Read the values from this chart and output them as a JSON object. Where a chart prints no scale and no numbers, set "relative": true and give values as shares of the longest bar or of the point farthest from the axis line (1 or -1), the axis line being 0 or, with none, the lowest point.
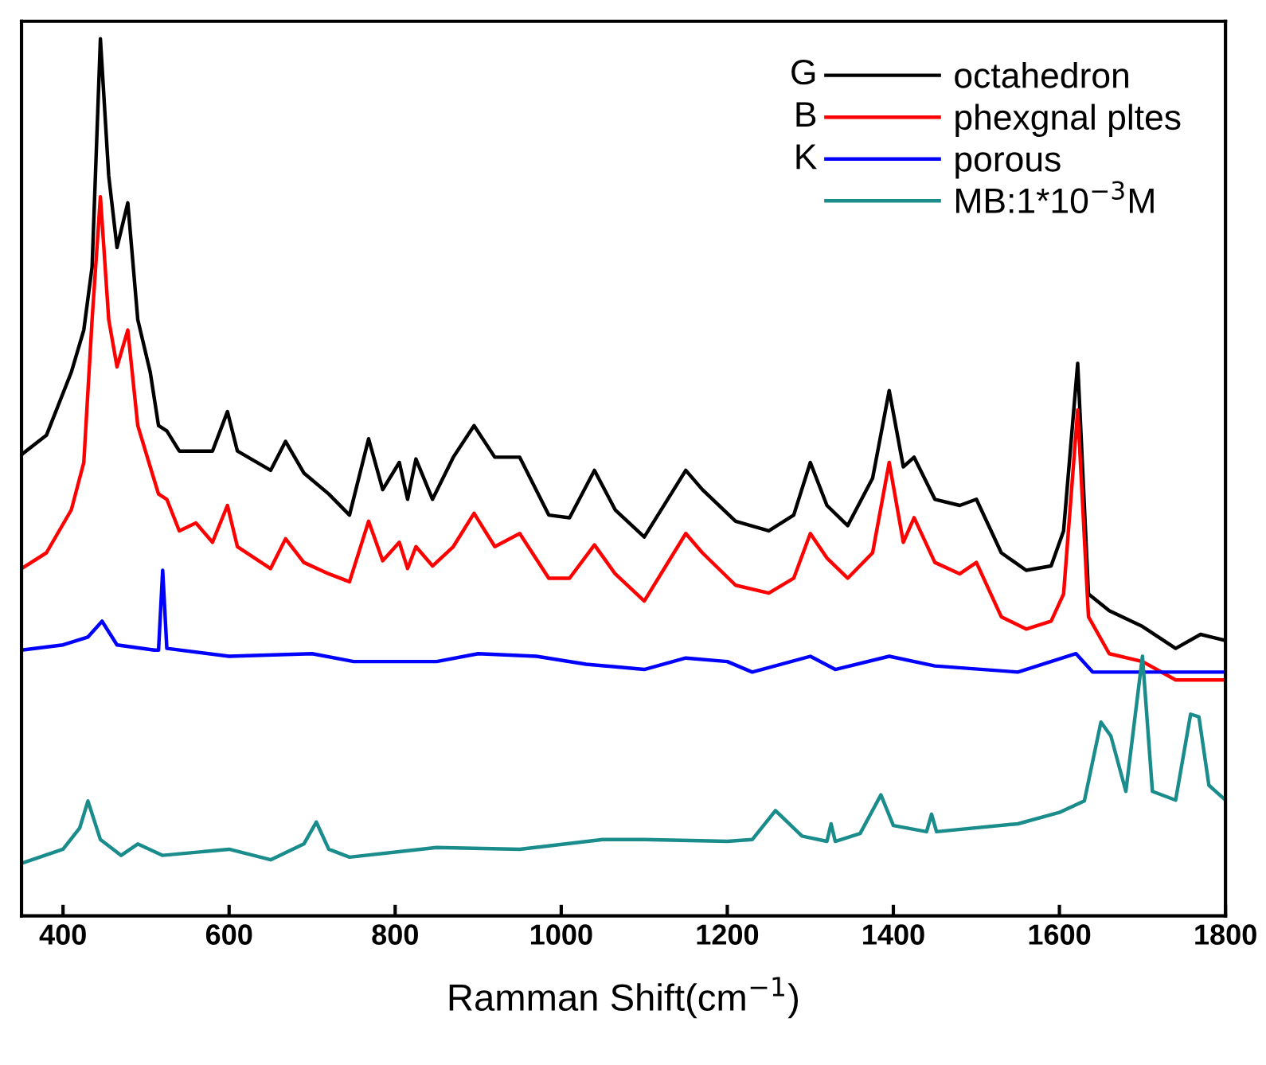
{
  "chart_data": {
    "type": "line",
    "relative": true,
    "xlabel": "Ramman Shift(cm$^{−1}$)",
    "xlim": [
      350,
      1800
    ],
    "xticks": [
      400,
      600,
      800,
      1000,
      1200,
      1400,
      1600,
      1800
    ],
    "tick_labels": "x",
    "legend": "top right",
    "grid": false,
    "annotations": [
      "G",
      "B",
      "K"
    ],
    "series": [
      {
        "name": "octahedron",
        "color": "#000000",
        "x": [
          350,
          380,
          410,
          425,
          435,
          445,
          455,
          465,
          478,
          490,
          505,
          515,
          525,
          540,
          580,
          598,
          610,
          650,
          668,
          690,
          720,
          745,
          768,
          785,
          805,
          815,
          825,
          845,
          870,
          895,
          920,
          950,
          985,
          1010,
          1040,
          1065,
          1100,
          1150,
          1170,
          1210,
          1250,
          1280,
          1300,
          1320,
          1345,
          1375,
          1395,
          1412,
          1425,
          1450,
          1480,
          1500,
          1530,
          1560,
          1590,
          1605,
          1622,
          1635,
          1660,
          1700,
          1740,
          1770,
          1800
        ],
        "values": [
          0.526,
          0.548,
          0.62,
          0.668,
          0.74,
          1.0,
          0.844,
          0.762,
          0.813,
          0.68,
          0.62,
          0.559,
          0.553,
          0.53,
          0.53,
          0.575,
          0.53,
          0.508,
          0.541,
          0.505,
          0.481,
          0.457,
          0.544,
          0.486,
          0.517,
          0.475,
          0.521,
          0.475,
          0.523,
          0.559,
          0.523,
          0.523,
          0.457,
          0.454,
          0.508,
          0.463,
          0.432,
          0.508,
          0.486,
          0.45,
          0.439,
          0.457,
          0.517,
          0.468,
          0.445,
          0.499,
          0.599,
          0.512,
          0.523,
          0.475,
          0.468,
          0.475,
          0.414,
          0.394,
          0.399,
          0.439,
          0.63,
          0.367,
          0.348,
          0.33,
          0.305,
          0.321,
          0.314
        ]
      },
      {
        "name": "phexgnal pltes",
        "color": "#ff0000",
        "x": [
          350,
          380,
          410,
          425,
          435,
          445,
          455,
          465,
          478,
          490,
          505,
          515,
          525,
          540,
          560,
          580,
          598,
          610,
          650,
          668,
          690,
          720,
          745,
          768,
          785,
          805,
          815,
          825,
          845,
          870,
          895,
          920,
          950,
          985,
          1010,
          1040,
          1065,
          1100,
          1150,
          1170,
          1210,
          1250,
          1280,
          1300,
          1320,
          1345,
          1375,
          1395,
          1412,
          1425,
          1450,
          1480,
          1500,
          1530,
          1560,
          1590,
          1605,
          1622,
          1635,
          1660,
          1700,
          1740,
          1800
        ],
        "values": [
          0.396,
          0.414,
          0.463,
          0.517,
          0.68,
          0.82,
          0.68,
          0.626,
          0.668,
          0.559,
          0.512,
          0.481,
          0.475,
          0.439,
          0.448,
          0.426,
          0.468,
          0.421,
          0.396,
          0.43,
          0.403,
          0.39,
          0.381,
          0.45,
          0.405,
          0.426,
          0.396,
          0.421,
          0.399,
          0.421,
          0.459,
          0.421,
          0.436,
          0.385,
          0.385,
          0.423,
          0.39,
          0.359,
          0.436,
          0.414,
          0.377,
          0.368,
          0.385,
          0.436,
          0.408,
          0.385,
          0.414,
          0.517,
          0.426,
          0.454,
          0.403,
          0.39,
          0.403,
          0.341,
          0.327,
          0.336,
          0.367,
          0.577,
          0.341,
          0.299,
          0.29,
          0.269,
          0.269
        ]
      },
      {
        "name": "porous",
        "color": "#0000ff",
        "x": [
          350,
          400,
          430,
          447,
          465,
          510,
          515,
          520,
          525,
          600,
          700,
          750,
          850,
          900,
          970,
          1030,
          1100,
          1150,
          1200,
          1230,
          1300,
          1330,
          1395,
          1450,
          1550,
          1620,
          1640,
          1700,
          1800
        ],
        "values": [
          0.303,
          0.309,
          0.318,
          0.336,
          0.309,
          0.303,
          0.303,
          0.394,
          0.305,
          0.296,
          0.299,
          0.29,
          0.29,
          0.299,
          0.296,
          0.287,
          0.281,
          0.294,
          0.29,
          0.278,
          0.296,
          0.281,
          0.296,
          0.285,
          0.278,
          0.299,
          0.278,
          0.278,
          0.278
        ]
      },
      {
        "name": "MB:1*10$^{−3}$M",
        "color": "#1a8c8c",
        "x": [
          350,
          400,
          420,
          430,
          445,
          470,
          490,
          520,
          600,
          650,
          690,
          705,
          720,
          745,
          850,
          950,
          1050,
          1100,
          1200,
          1230,
          1258,
          1290,
          1320,
          1325,
          1330,
          1360,
          1385,
          1400,
          1440,
          1446,
          1452,
          1550,
          1600,
          1630,
          1650,
          1662,
          1680,
          1700,
          1712,
          1740,
          1758,
          1768,
          1780,
          1800
        ],
        "values": [
          0.06,
          0.076,
          0.1,
          0.131,
          0.087,
          0.069,
          0.082,
          0.069,
          0.076,
          0.064,
          0.082,
          0.107,
          0.076,
          0.067,
          0.078,
          0.076,
          0.087,
          0.087,
          0.085,
          0.087,
          0.12,
          0.091,
          0.085,
          0.105,
          0.085,
          0.094,
          0.138,
          0.103,
          0.096,
          0.116,
          0.096,
          0.105,
          0.118,
          0.131,
          0.221,
          0.205,
          0.142,
          0.296,
          0.142,
          0.132,
          0.23,
          0.227,
          0.149,
          0.132
        ]
      }
    ]
  }
}
